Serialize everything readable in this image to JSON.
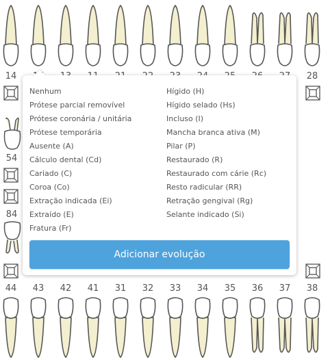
{
  "colors": {
    "tooth_crown": "#ffffff",
    "tooth_root": "#f3efcf",
    "tooth_outline": "#555555",
    "accent": "#4ea3dd"
  },
  "upper_row": {
    "numbers": [
      "14",
      "15",
      "13",
      "11",
      "21",
      "22",
      "23",
      "24",
      "25",
      "26",
      "27",
      "28"
    ]
  },
  "primary_row": {
    "numbers": [
      "54",
      "84"
    ]
  },
  "lower_row": {
    "numbers": [
      "44",
      "43",
      "42",
      "41",
      "31",
      "32",
      "33",
      "34",
      "35",
      "36",
      "37",
      "38"
    ]
  },
  "popup": {
    "left_options": [
      "Nenhum",
      "Prótese parcial removível",
      "Prótese coronária / unitária",
      "Prótese temporária",
      "Ausente (A)",
      "Cálculo dental (Cd)",
      "Cariado (C)",
      "Coroa (Co)",
      "Extração indicada (Ei)",
      "Extraído (E)",
      "Fratura (Fr)"
    ],
    "right_options": [
      "Hígido (H)",
      "Hígido selado (Hs)",
      "Incluso (I)",
      "Mancha branca ativa (M)",
      "Pilar (P)",
      "Restaurado (R)",
      "Restaurado com cárie (Rc)",
      "Resto radicular (RR)",
      "Retração gengival (Rg)",
      "Selante indicado (Si)"
    ],
    "add_button": "Adicionar evolução"
  }
}
